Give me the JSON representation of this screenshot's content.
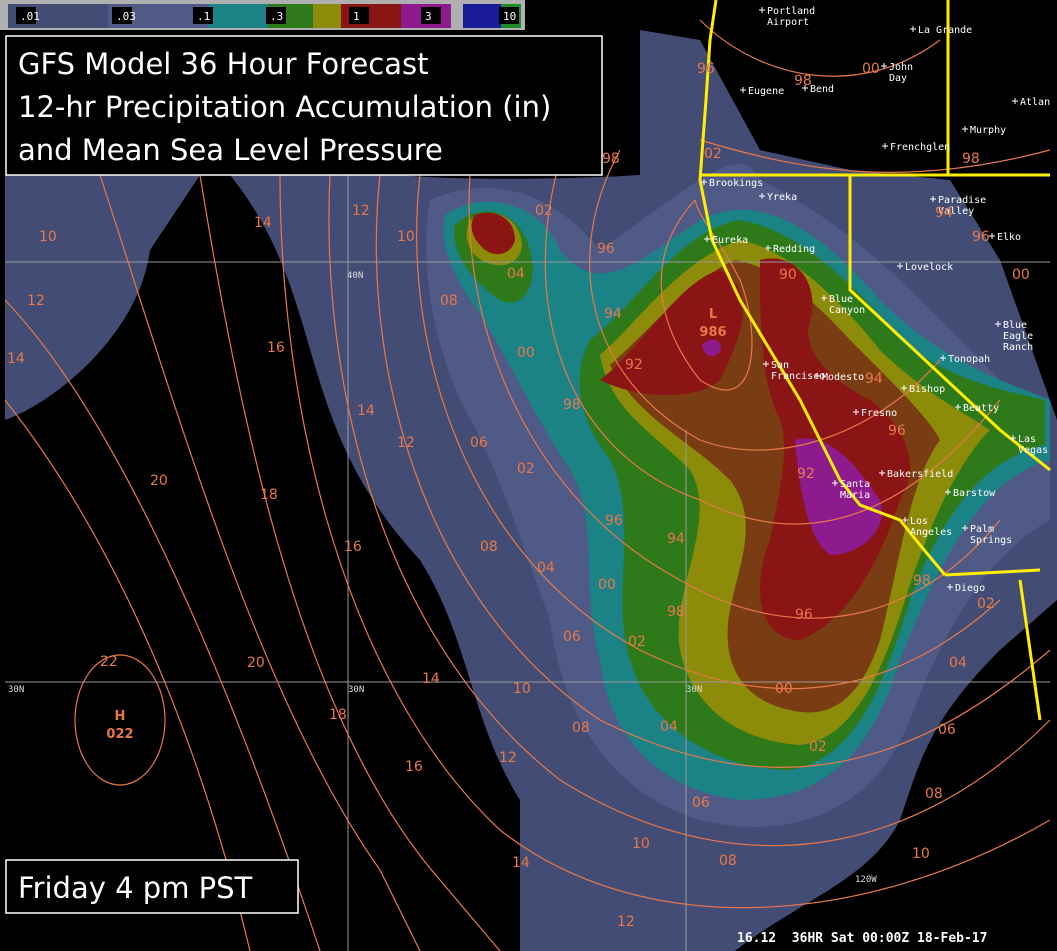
{
  "legend": {
    "labels": [
      ".01",
      ".03",
      ".1",
      ".3",
      "1",
      "3",
      "10"
    ]
  },
  "title": {
    "lines": [
      "GFS  Model 36 Hour Forecast",
      "12-hr Precipitation Accumulation (in)",
      "and Mean Sea Level Pressure"
    ]
  },
  "time_label": "Friday 4 pm PST",
  "footer": "16.12  36HR Sat 00:00Z 18-Feb-17",
  "lat_labels": [
    "40N",
    "30N",
    "30N",
    "30N"
  ],
  "lon_labels": [
    "120W"
  ],
  "pressure_centers": [
    {
      "symbol": "L",
      "value": "986"
    },
    {
      "symbol": "H",
      "value": "022"
    }
  ],
  "cities": [
    [
      "Portland",
      "Airport"
    ],
    [
      "La Grande"
    ],
    [
      "John",
      "Day"
    ],
    [
      "Eugene"
    ],
    [
      "Bend"
    ],
    [
      "Atlan"
    ],
    [
      "Murphy"
    ],
    [
      "Frenchglen"
    ],
    [
      "Brookings"
    ],
    [
      "Yreka"
    ],
    [
      "Paradise",
      "Valley"
    ],
    [
      "Eureka"
    ],
    [
      "Redding"
    ],
    [
      "Elko"
    ],
    [
      "Lovelock"
    ],
    [
      "Blue",
      "Canyon"
    ],
    [
      "Blue",
      "Eagle",
      "Ranch"
    ],
    [
      "Tonopah"
    ],
    [
      "San",
      "Francisco"
    ],
    [
      "Modesto"
    ],
    [
      "Bishop"
    ],
    [
      "Beatty"
    ],
    [
      "Fresno"
    ],
    [
      "Las",
      "Vegas"
    ],
    [
      "Bakersfield"
    ],
    [
      "Santa",
      "Maria"
    ],
    [
      "Barstow"
    ],
    [
      "Los",
      "Angeles"
    ],
    [
      "Palm",
      "Springs"
    ],
    [
      "Diego"
    ]
  ],
  "isobar_labels": [
    "96",
    "00",
    "98",
    "98",
    "02",
    "98",
    "12",
    "10",
    "14",
    "10",
    "02",
    "96",
    "04",
    "90",
    "94",
    "96",
    "00",
    "12",
    "08",
    "94",
    "14",
    "16",
    "00",
    "92",
    "98",
    "14",
    "12",
    "06",
    "02",
    "94",
    "96",
    "92",
    "20",
    "18",
    "16",
    "08",
    "04",
    "96",
    "94",
    "00",
    "06",
    "02",
    "98",
    "96",
    "98",
    "02",
    "04",
    "22",
    "20",
    "14",
    "10",
    "00",
    "18",
    "08",
    "04",
    "02",
    "06",
    "16",
    "12",
    "06",
    "08",
    "10",
    "10",
    "14",
    "08",
    "12"
  ]
}
